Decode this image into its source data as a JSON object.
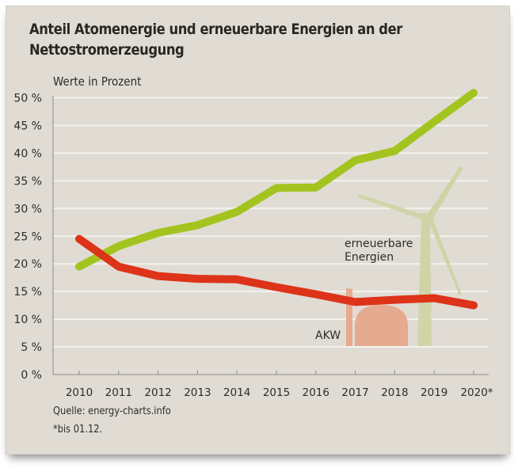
{
  "chart_data": {
    "type": "line",
    "title": "Anteil Atomenergie und erneuerbare Energien an der Nettostromerzeugung",
    "ylabel": "Werte in Prozent",
    "xlabel": "",
    "x": [
      "2010",
      "2011",
      "2012",
      "2013",
      "2014",
      "2015",
      "2016",
      "2017",
      "2018",
      "2019",
      "2020*"
    ],
    "ylim": [
      0,
      50
    ],
    "yticks": [
      0,
      5,
      10,
      15,
      20,
      25,
      30,
      35,
      40,
      45,
      50
    ],
    "ytick_labels": [
      "0 %",
      "5 %",
      "10 %",
      "15 %",
      "20 %",
      "25 %",
      "30 %",
      "35 %",
      "40 %",
      "45 %",
      "50 %"
    ],
    "grid": true,
    "series": [
      {
        "name": "erneuerbare Energien",
        "color": "#a3c41e",
        "values": [
          19.5,
          23.2,
          25.6,
          27.0,
          29.4,
          33.7,
          33.8,
          38.7,
          40.4,
          45.7,
          50.9
        ]
      },
      {
        "name": "AKW",
        "color": "#dd3319",
        "values": [
          24.5,
          19.5,
          17.8,
          17.3,
          17.2,
          15.8,
          14.5,
          13.1,
          13.5,
          13.8,
          12.5
        ]
      }
    ],
    "annotations": [
      "erneuerbare Energien",
      "AKW"
    ],
    "source": "Quelle: energy-charts.info",
    "footnote": "*bis 01.12."
  },
  "colors": {
    "background": "#e0dcd4",
    "grid": "#f4f2ee",
    "axis": "#8c8882",
    "renewables": "#a3c41e",
    "nuclear": "#dd3319",
    "turbine": "#cfd4a4",
    "plant": "#e6aa90"
  },
  "icons": {
    "wind_turbine": "wind-turbine-icon",
    "nuclear_plant": "nuclear-plant-icon"
  }
}
